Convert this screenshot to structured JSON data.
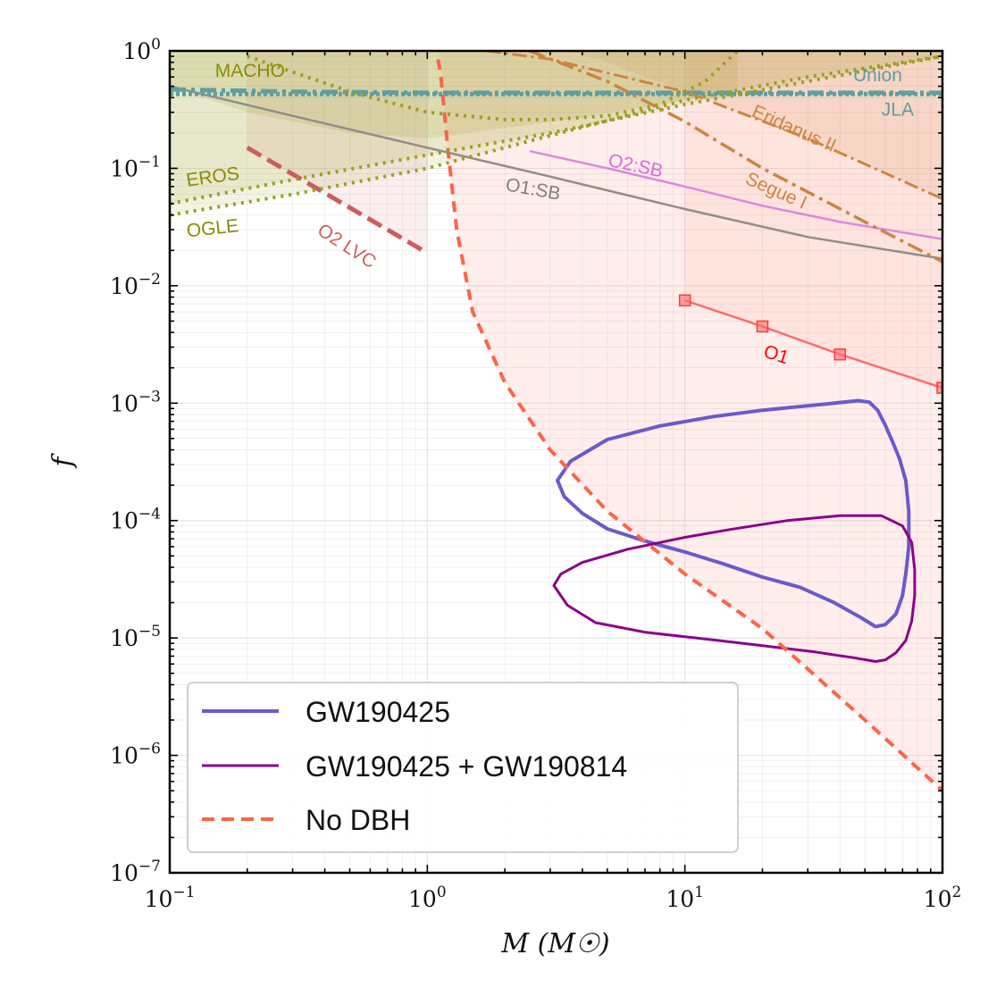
{
  "chart_data": {
    "type": "line",
    "title": "",
    "xlabel": "M (M☉)",
    "ylabel": "f",
    "xscale": "log",
    "yscale": "log",
    "xlim": [
      0.1,
      100
    ],
    "ylim": [
      1e-07,
      1
    ],
    "x_ticks": [
      {
        "value": 0.1,
        "base": "10",
        "exp": "−1"
      },
      {
        "value": 1,
        "base": "10",
        "exp": "0"
      },
      {
        "value": 10,
        "base": "10",
        "exp": "1"
      },
      {
        "value": 100,
        "base": "10",
        "exp": "2"
      }
    ],
    "y_ticks": [
      {
        "value": 1e-07,
        "base": "10",
        "exp": "−7"
      },
      {
        "value": 1e-06,
        "base": "10",
        "exp": "−6"
      },
      {
        "value": 1e-05,
        "base": "10",
        "exp": "−5"
      },
      {
        "value": 0.0001,
        "base": "10",
        "exp": "−4"
      },
      {
        "value": 0.001,
        "base": "10",
        "exp": "−3"
      },
      {
        "value": 0.01,
        "base": "10",
        "exp": "−2"
      },
      {
        "value": 0.1,
        "base": "10",
        "exp": "−1"
      },
      {
        "value": 1,
        "base": "10",
        "exp": "0"
      }
    ],
    "legend_position": "bottom-left",
    "legend": [
      {
        "label": "GW190425",
        "color": "#6a5acd",
        "style": "solid"
      },
      {
        "label": "GW190425 + GW190814",
        "color": "#8b008b",
        "style": "solid"
      },
      {
        "label": "No DBH",
        "color": "#ff6347",
        "style": "dashed"
      }
    ],
    "shaded_regions": [
      {
        "name": "no-dbh-excluded",
        "color": "#ff6347",
        "points": [
          [
            1.1,
            1
          ],
          [
            100,
            1
          ],
          [
            100,
            5e-07
          ],
          [
            50,
            2e-06
          ],
          [
            20,
            1.2e-05
          ],
          [
            10,
            3.5e-05
          ],
          [
            5,
            0.00012
          ],
          [
            3,
            0.0004
          ],
          [
            2,
            0.0015
          ],
          [
            1.5,
            0.006
          ],
          [
            1.3,
            0.03
          ],
          [
            1.2,
            0.15
          ],
          [
            1.13,
            0.8
          ]
        ]
      },
      {
        "name": "o1-excluded",
        "color": "#ff6347",
        "points": [
          [
            10,
            1
          ],
          [
            100,
            1
          ],
          [
            100,
            0.0013
          ],
          [
            40,
            0.0026
          ],
          [
            20,
            0.0045
          ],
          [
            10,
            0.0075
          ]
        ]
      },
      {
        "name": "o2-lvc-excluded",
        "color": "#cd5c5c",
        "points": [
          [
            0.2,
            1
          ],
          [
            1,
            1
          ],
          [
            1,
            0.019
          ],
          [
            0.2,
            0.15
          ]
        ]
      },
      {
        "name": "macho-excluded",
        "color": "#9aa020",
        "points": [
          [
            0.1,
            1
          ],
          [
            16,
            1
          ],
          [
            16,
            0.45
          ],
          [
            8,
            0.35
          ],
          [
            4,
            0.27
          ],
          [
            2,
            0.22
          ],
          [
            1,
            0.18
          ],
          [
            0.5,
            0.2
          ],
          [
            0.2,
            0.3
          ],
          [
            0.1,
            0.5
          ]
        ]
      },
      {
        "name": "eros-excluded",
        "color": "#9aa020",
        "points": [
          [
            0.1,
            1
          ],
          [
            100,
            1
          ],
          [
            100,
            0.9
          ],
          [
            30,
            0.55
          ],
          [
            10,
            0.35
          ],
          [
            3,
            0.2
          ],
          [
            1,
            0.13
          ],
          [
            0.3,
            0.08
          ],
          [
            0.1,
            0.05
          ]
        ]
      },
      {
        "name": "ogle-excluded",
        "color": "#9aa020",
        "points": [
          [
            0.1,
            1
          ],
          [
            100,
            1
          ],
          [
            100,
            0.9
          ],
          [
            30,
            0.6
          ],
          [
            10,
            0.38
          ],
          [
            3,
            0.19
          ],
          [
            1,
            0.1
          ],
          [
            0.3,
            0.06
          ],
          [
            0.1,
            0.04
          ]
        ]
      },
      {
        "name": "eridanus-excluded",
        "color": "#cd853f",
        "points": [
          [
            2,
            1
          ],
          [
            100,
            1
          ],
          [
            100,
            0.055
          ],
          [
            30,
            0.18
          ],
          [
            10,
            0.45
          ],
          [
            5,
            0.8
          ],
          [
            3.5,
            1
          ]
        ]
      }
    ],
    "series": [
      {
        "name": "GW190425",
        "color": "#6a5acd",
        "width": 4,
        "dash": "",
        "closed": true,
        "x": [
          3.2,
          3.6,
          5,
          8,
          13,
          20,
          35,
          47,
          52,
          56,
          60,
          64,
          68,
          72,
          74,
          74,
          72,
          70,
          66,
          60,
          55,
          48,
          38,
          28,
          20,
          14,
          10,
          7,
          5,
          4,
          3.4,
          3.2
        ],
        "y": [
          0.00022,
          0.00032,
          0.00049,
          0.00064,
          0.00077,
          0.00087,
          0.00098,
          0.00105,
          0.00102,
          0.00087,
          0.00065,
          0.00047,
          0.00034,
          0.00022,
          0.00012,
          6e-05,
          3.5e-05,
          2.3e-05,
          1.6e-05,
          1.3e-05,
          1.25e-05,
          1.5e-05,
          2e-05,
          2.7e-05,
          3.3e-05,
          4.3e-05,
          5.4e-05,
          6.7e-05,
          8.5e-05,
          0.000115,
          0.00016,
          0.00022
        ]
      },
      {
        "name": "GW190425 + GW190814",
        "color": "#8b008b",
        "width": 3,
        "dash": "",
        "closed": true,
        "x": [
          3.1,
          3.3,
          4,
          6,
          10,
          15,
          25,
          40,
          58,
          70,
          76,
          78,
          78,
          76,
          72,
          66,
          60,
          55,
          45,
          32,
          20,
          12,
          7,
          4.5,
          3.5,
          3.1
        ],
        "y": [
          2.8e-05,
          3.5e-05,
          4.4e-05,
          5.7e-05,
          7.2e-05,
          8.4e-05,
          0.0001,
          0.00011,
          0.00011,
          9e-05,
          6.5e-05,
          3.8e-05,
          2.3e-05,
          1.4e-05,
          9.5e-06,
          7.5e-06,
          6.5e-06,
          6.3e-06,
          6.8e-06,
          7.6e-06,
          8.6e-06,
          9.8e-06,
          1.12e-05,
          1.35e-05,
          1.9e-05,
          2.8e-05
        ]
      },
      {
        "name": "No DBH",
        "color": "#ff6347",
        "width": 4,
        "dash": "12,8",
        "closed": false,
        "x": [
          1.1,
          1.13,
          1.2,
          1.3,
          1.5,
          2,
          3,
          5,
          10,
          20,
          50,
          100
        ],
        "y": [
          0.85,
          0.6,
          0.15,
          0.03,
          0.006,
          0.0015,
          0.0004,
          0.00012,
          3.5e-05,
          1.2e-05,
          2e-06,
          5e-07
        ]
      },
      {
        "name": "O1",
        "color": "#ff6b6b",
        "width": 2.5,
        "dash": "",
        "closed": false,
        "markers": true,
        "x": [
          10,
          20,
          40,
          100
        ],
        "y": [
          0.0075,
          0.0045,
          0.0026,
          0.00135
        ]
      },
      {
        "name": "O2 LVC",
        "color": "#cd5c5c",
        "width": 5,
        "dash": "18,8",
        "closed": false,
        "x": [
          0.2,
          1
        ],
        "y": [
          0.15,
          0.019
        ]
      },
      {
        "name": "O1:SB",
        "color": "#938c8c",
        "width": 2.5,
        "dash": "",
        "closed": false,
        "x": [
          0.1,
          0.3,
          1,
          3,
          10,
          30,
          100
        ],
        "y": [
          0.5,
          0.28,
          0.15,
          0.085,
          0.045,
          0.026,
          0.017
        ]
      },
      {
        "name": "O2:SB",
        "color": "#dd88dd",
        "width": 2.5,
        "dash": "",
        "closed": false,
        "x": [
          2.5,
          5,
          10,
          20,
          40,
          100
        ],
        "y": [
          0.14,
          0.1,
          0.07,
          0.048,
          0.035,
          0.025
        ]
      },
      {
        "name": "Union",
        "color": "#5f9ea0",
        "width": 5,
        "dash": "18,6,4,6",
        "closed": false,
        "x": [
          0.1,
          0.3,
          1,
          10,
          100
        ],
        "y": [
          0.47,
          0.45,
          0.44,
          0.44,
          0.44
        ]
      },
      {
        "name": "JLA",
        "color": "#5f9ea0",
        "width": 5,
        "dash": "4,3",
        "closed": false,
        "x": [
          0.1,
          1,
          10,
          100
        ],
        "y": [
          0.43,
          0.43,
          0.43,
          0.43
        ]
      },
      {
        "name": "Eridanus II",
        "color": "#cd853f",
        "width": 3,
        "dash": "16,5,3,5",
        "closed": false,
        "x": [
          1.7,
          3,
          10,
          30,
          100
        ],
        "y": [
          1,
          0.85,
          0.45,
          0.18,
          0.055
        ]
      },
      {
        "name": "Segue I",
        "color": "#cd853f",
        "width": 3.5,
        "dash": "18,6,4,6",
        "closed": false,
        "x": [
          2.5,
          5,
          10,
          20,
          50,
          100
        ],
        "y": [
          1,
          0.55,
          0.25,
          0.1,
          0.035,
          0.016
        ]
      },
      {
        "name": "MACHO",
        "color": "#9aa020",
        "width": 4,
        "dash": "3,6",
        "closed": false,
        "x": [
          0.2,
          0.5,
          1,
          2,
          3,
          5,
          8,
          12,
          16
        ],
        "y": [
          0.9,
          0.45,
          0.3,
          0.26,
          0.26,
          0.28,
          0.35,
          0.55,
          1
        ]
      },
      {
        "name": "EROS",
        "color": "#9aa020",
        "width": 4,
        "dash": "3,6",
        "closed": false,
        "x": [
          0.1,
          0.3,
          1,
          3,
          10,
          30,
          100
        ],
        "y": [
          0.05,
          0.08,
          0.13,
          0.2,
          0.35,
          0.55,
          0.9
        ]
      },
      {
        "name": "OGLE",
        "color": "#9aa020",
        "width": 4,
        "dash": "3,6",
        "closed": false,
        "x": [
          0.1,
          0.3,
          1,
          3,
          10,
          30,
          100
        ],
        "y": [
          0.04,
          0.06,
          0.1,
          0.19,
          0.38,
          0.6,
          0.9
        ]
      }
    ],
    "annotations": [
      {
        "text": "MACHO",
        "x": 0.15,
        "y": 0.6,
        "color": "#8b8b00",
        "rotate": 0
      },
      {
        "text": "EROS",
        "x": 0.117,
        "y": 0.07,
        "color": "#8b8b00",
        "rotate": -8
      },
      {
        "text": "OGLE",
        "x": 0.117,
        "y": 0.026,
        "color": "#8b8b00",
        "rotate": -6
      },
      {
        "text": "O2 LVC",
        "x": 0.37,
        "y": 0.028,
        "color": "#cd5c5c",
        "rotate": 33
      },
      {
        "text": "O1:SB",
        "x": 2,
        "y": 0.065,
        "color": "#7f7f7f",
        "rotate": 10
      },
      {
        "text": "O2:SB",
        "x": 5,
        "y": 0.105,
        "color": "#dd66dd",
        "rotate": 12
      },
      {
        "text": "Union",
        "x": 45,
        "y": 0.55,
        "color": "#5f9ea0",
        "rotate": 0
      },
      {
        "text": "JLA",
        "x": 58,
        "y": 0.28,
        "color": "#5f9ea0",
        "rotate": 0
      },
      {
        "text": "Eridanus II",
        "x": 18,
        "y": 0.28,
        "color": "#cd853f",
        "rotate": 24
      },
      {
        "text": "Segue I",
        "x": 17,
        "y": 0.075,
        "color": "#cd853f",
        "rotate": 24
      },
      {
        "text": "O1",
        "x": 20,
        "y": 0.0025,
        "color": "#ff0000",
        "rotate": 18
      }
    ]
  }
}
